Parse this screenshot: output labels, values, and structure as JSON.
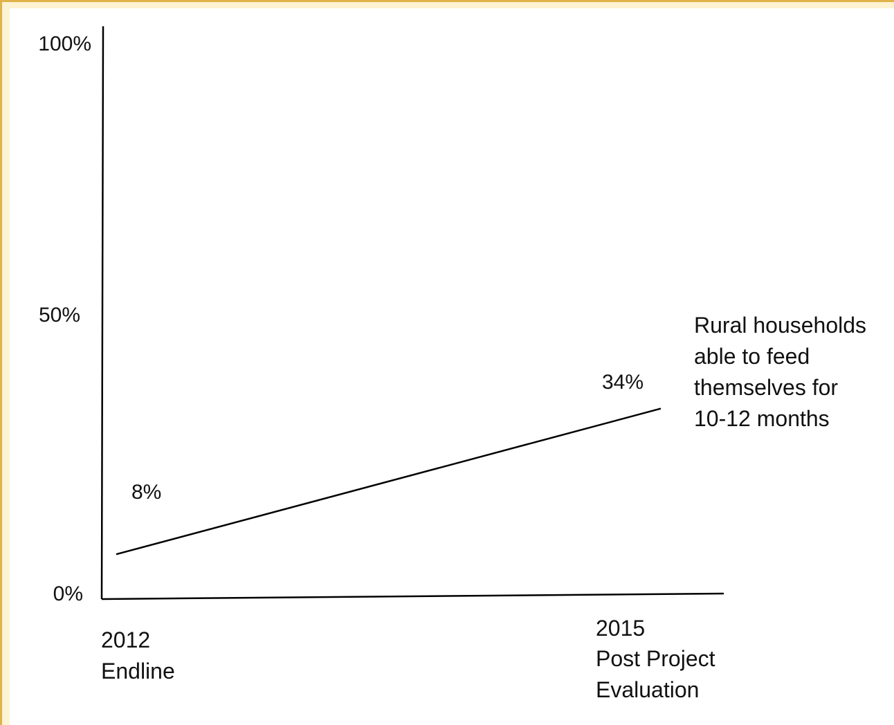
{
  "chart_data": {
    "type": "line",
    "title": "",
    "xlabel": "",
    "ylabel": "",
    "ylim": [
      0,
      100
    ],
    "y_ticks": [
      {
        "value": 0,
        "label": "0%"
      },
      {
        "value": 50,
        "label": "50%"
      },
      {
        "value": 100,
        "label": "100%"
      }
    ],
    "categories": [
      {
        "year": "2012",
        "label": "Endline"
      },
      {
        "year": "2015",
        "label": "Post Project Evaluation"
      }
    ],
    "series": [
      {
        "name": "Rural households able to feed themselves for 10-12 months",
        "name_lines": [
          "Rural households",
          "able to feed",
          "themselves for",
          "10-12 months"
        ],
        "values": [
          8,
          34
        ],
        "data_labels": [
          "8%",
          "34%"
        ],
        "color": "#000000"
      }
    ],
    "grid": false,
    "legend": "none"
  }
}
